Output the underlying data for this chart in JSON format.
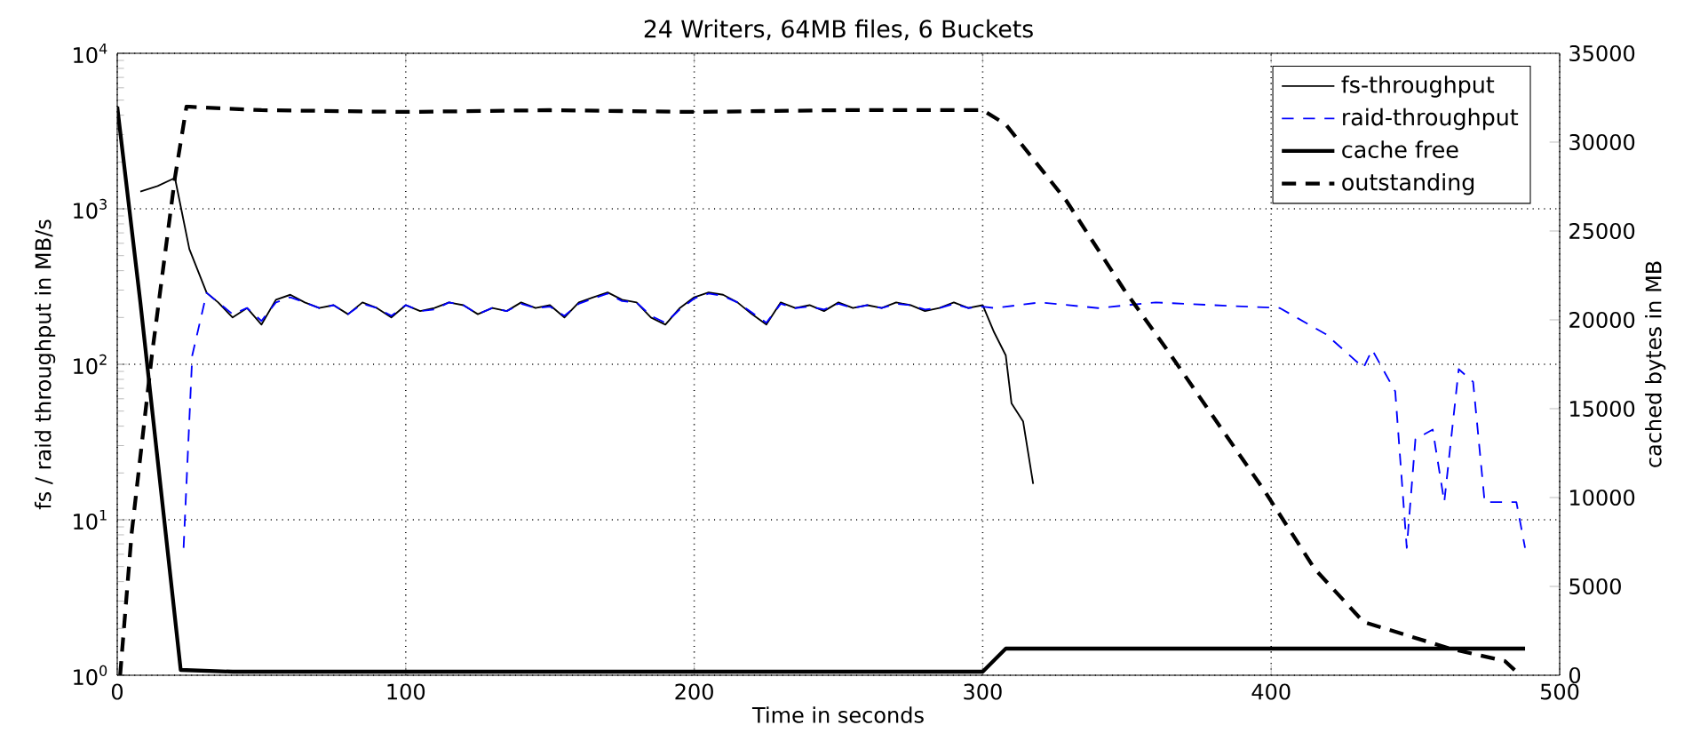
{
  "chart_data": {
    "type": "line",
    "title": "24 Writers, 64MB files, 6 Buckets",
    "xlabel": "Time in seconds",
    "ylabel": "fs / raid throughput in MB/s",
    "y2label": "cached bytes in MB",
    "xlim": [
      0,
      500
    ],
    "xticks": [
      0,
      100,
      200,
      300,
      400,
      500
    ],
    "ylim": [
      1,
      10000
    ],
    "yticks": [
      {
        "value": 1,
        "label": "10$^{0}$"
      },
      {
        "value": 10,
        "label": "10$^{1}$"
      },
      {
        "value": 100,
        "label": "10$^{2}$"
      },
      {
        "value": 1000,
        "label": "10$^{3}$"
      },
      {
        "value": 10000,
        "label": "10$^{4}$"
      }
    ],
    "y2lim": [
      0,
      35000
    ],
    "y2ticks": [
      0,
      5000,
      10000,
      15000,
      20000,
      25000,
      30000,
      35000
    ],
    "log": "y",
    "grid": true,
    "legend": "top right",
    "marker": "none",
    "series": [
      {
        "name": "fs-throughput",
        "color": "#000000",
        "line_style": "solid",
        "x": [
          8,
          14,
          20,
          25,
          31,
          35,
          40,
          45,
          50,
          55,
          60,
          65,
          70,
          75,
          80,
          85,
          90,
          95,
          100,
          105,
          110,
          115,
          120,
          125,
          130,
          135,
          140,
          145,
          150,
          155,
          160,
          165,
          170,
          175,
          180,
          185,
          190,
          195,
          200,
          205,
          210,
          215,
          220,
          225,
          230,
          235,
          240,
          245,
          250,
          255,
          260,
          265,
          270,
          275,
          280,
          285,
          290,
          295,
          300,
          304,
          308,
          310,
          314,
          317.5
        ],
        "values": [
          1290,
          1400,
          1580,
          550,
          288,
          250,
          200,
          230,
          180,
          260,
          280,
          250,
          230,
          240,
          210,
          250,
          230,
          200,
          240,
          220,
          230,
          250,
          240,
          210,
          230,
          220,
          250,
          230,
          240,
          200,
          250,
          270,
          290,
          260,
          250,
          200,
          180,
          230,
          270,
          290,
          280,
          250,
          210,
          180,
          250,
          230,
          240,
          220,
          250,
          230,
          240,
          230,
          250,
          240,
          220,
          230,
          250,
          230,
          240,
          160,
          114,
          56,
          43,
          17
        ]
      },
      {
        "name": "raid-throughput",
        "color": "#0000ff",
        "line_style": "dashed",
        "x": [
          23,
          26,
          31,
          35,
          40,
          45,
          50,
          55,
          60,
          65,
          70,
          75,
          80,
          85,
          90,
          95,
          100,
          105,
          110,
          115,
          120,
          125,
          130,
          135,
          140,
          145,
          150,
          155,
          160,
          165,
          170,
          175,
          180,
          185,
          190,
          195,
          200,
          205,
          210,
          215,
          220,
          225,
          230,
          235,
          240,
          245,
          250,
          255,
          260,
          265,
          270,
          275,
          280,
          285,
          290,
          295,
          300,
          304,
          320,
          340,
          360,
          380,
          403,
          419,
          432,
          435,
          443,
          447,
          450,
          456,
          460,
          465,
          470,
          474,
          485,
          488
        ],
        "values": [
          6.6,
          114,
          288,
          250,
          210,
          230,
          190,
          250,
          270,
          250,
          230,
          240,
          210,
          245,
          230,
          205,
          240,
          220,
          225,
          250,
          240,
          210,
          230,
          220,
          245,
          230,
          235,
          205,
          245,
          265,
          285,
          255,
          250,
          205,
          185,
          225,
          265,
          285,
          275,
          250,
          215,
          185,
          245,
          230,
          235,
          225,
          245,
          230,
          240,
          230,
          245,
          240,
          225,
          230,
          245,
          230,
          235,
          230,
          250,
          230,
          250,
          240,
          230,
          156,
          95,
          124,
          67,
          6.6,
          33,
          38,
          13,
          93,
          77,
          13,
          13,
          6.6
        ]
      },
      {
        "name": "cache free",
        "color": "#000000",
        "line_style": "solid",
        "axis": "y2",
        "x": [
          0,
          8,
          22,
          40,
          100,
          200,
          300,
          308,
          488
        ],
        "values": [
          32000,
          21000,
          300,
          200,
          200,
          200,
          200,
          1500,
          1500
        ]
      },
      {
        "name": "outstanding",
        "color": "#000000",
        "line_style": "dashed",
        "axis": "y2",
        "x": [
          1,
          5,
          12,
          20,
          24,
          50,
          100,
          150,
          200,
          250,
          300,
          308,
          329,
          349,
          364,
          378,
          398,
          415,
          432,
          448,
          462,
          481,
          485
        ],
        "values": [
          0,
          8000,
          18000,
          28000,
          32000,
          31800,
          31700,
          31800,
          31700,
          31800,
          31800,
          31000,
          26700,
          21700,
          18300,
          15000,
          10300,
          6000,
          3000,
          2200,
          1500,
          800,
          200
        ]
      }
    ]
  }
}
